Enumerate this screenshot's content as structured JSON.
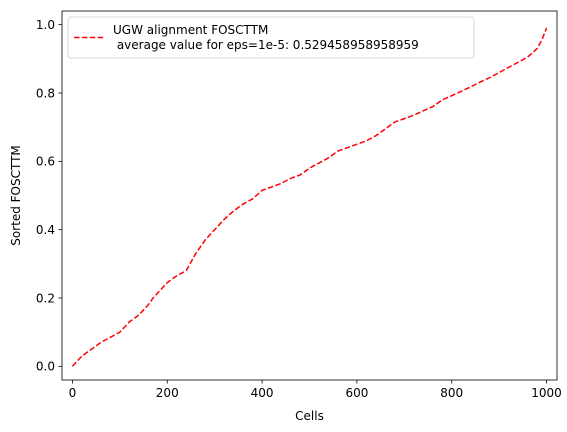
{
  "chart_data": {
    "type": "line",
    "title": "",
    "xlabel": "Cells",
    "ylabel": "Sorted FOSCTTM",
    "xlim": [
      -22,
      1022
    ],
    "ylim": [
      -0.04,
      1.04
    ],
    "xticks": [
      0,
      200,
      400,
      600,
      800,
      1000
    ],
    "xtick_labels": [
      "0",
      "200",
      "400",
      "600",
      "800",
      "1000"
    ],
    "yticks": [
      0.0,
      0.2,
      0.4,
      0.6,
      0.8,
      1.0
    ],
    "ytick_labels": [
      "0.0",
      "0.2",
      "0.4",
      "0.6",
      "0.8",
      "1.0"
    ],
    "grid": false,
    "legend_position": "top-left",
    "series": [
      {
        "name": "UGW alignment FOSCTTM",
        "legend_line1": "UGW alignment FOSCTTM",
        "legend_line2": " average value for eps=1e-5: 0.529458958958959",
        "color": "#ff0000",
        "line_style": "dashed",
        "x": [
          0,
          20,
          40,
          60,
          80,
          100,
          120,
          140,
          160,
          170,
          180,
          200,
          220,
          240,
          260,
          280,
          300,
          320,
          340,
          360,
          380,
          400,
          420,
          440,
          460,
          480,
          500,
          520,
          540,
          560,
          580,
          600,
          620,
          640,
          660,
          680,
          700,
          720,
          740,
          760,
          780,
          800,
          820,
          840,
          860,
          880,
          900,
          920,
          940,
          960,
          980,
          990,
          1000
        ],
        "y": [
          0.0,
          0.03,
          0.05,
          0.07,
          0.085,
          0.1,
          0.13,
          0.15,
          0.18,
          0.2,
          0.215,
          0.245,
          0.265,
          0.28,
          0.33,
          0.37,
          0.4,
          0.43,
          0.455,
          0.475,
          0.49,
          0.515,
          0.525,
          0.535,
          0.55,
          0.56,
          0.58,
          0.595,
          0.61,
          0.63,
          0.64,
          0.65,
          0.66,
          0.675,
          0.695,
          0.715,
          0.725,
          0.735,
          0.748,
          0.76,
          0.78,
          0.792,
          0.805,
          0.818,
          0.832,
          0.845,
          0.86,
          0.875,
          0.89,
          0.905,
          0.93,
          0.955,
          0.99
        ]
      }
    ]
  }
}
